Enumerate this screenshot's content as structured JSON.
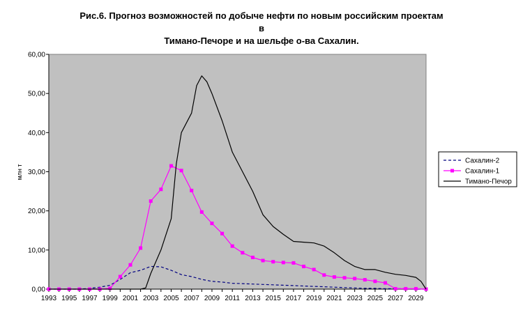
{
  "chart_data": {
    "type": "line",
    "title": [
      "Рис.6. Прогноз возможностей по добыче нефти по новым российским проектам",
      "в",
      "Тимано-Печоре и на шельфе о-ва Сахалин."
    ],
    "ylabel": "млн т",
    "xlabel": "",
    "ylim": [
      0,
      60
    ],
    "yticks": [
      "0,00",
      "10,00",
      "20,00",
      "30,00",
      "40,00",
      "50,00",
      "60,00"
    ],
    "xlim": [
      1993,
      2030
    ],
    "xticks": [
      "1993",
      "1995",
      "1997",
      "1999",
      "2001",
      "2003",
      "2005",
      "2007",
      "2009",
      "2011",
      "2013",
      "2015",
      "2017",
      "2019",
      "2021",
      "2023",
      "2025",
      "2027",
      "2029"
    ],
    "grid": false,
    "plot_background": "#c0c0c0",
    "legend": "right",
    "series": [
      {
        "name": "Сахалин-2",
        "color": "#000080",
        "style": "dashed",
        "x": [
          1993,
          1994,
          1995,
          1996,
          1997,
          1998,
          1999,
          2000,
          2001,
          2002,
          2003,
          2004,
          2005,
          2006,
          2007,
          2008,
          2009,
          2010,
          2011,
          2012,
          2013,
          2014,
          2015,
          2016,
          2017,
          2018,
          2019,
          2020,
          2021,
          2022,
          2023,
          2024,
          2025,
          2026,
          2027,
          2028,
          2029,
          2030
        ],
        "y": [
          0,
          0,
          0,
          0,
          0.2,
          0.5,
          1.0,
          2.5,
          4.2,
          4.8,
          5.8,
          5.7,
          4.8,
          3.7,
          3.2,
          2.5,
          2.0,
          1.8,
          1.5,
          1.4,
          1.3,
          1.2,
          1.1,
          1.0,
          0.9,
          0.8,
          0.7,
          0.6,
          0.5,
          0.4,
          0.3,
          0.2,
          0.2,
          0.1,
          0.1,
          0.1,
          0,
          0
        ]
      },
      {
        "name": "Сахалин-1",
        "color": "#ff00ff",
        "style": "solid-square",
        "x": [
          1993,
          1994,
          1995,
          1996,
          1997,
          1998,
          1999,
          2000,
          2001,
          2002,
          2003,
          2004,
          2005,
          2006,
          2007,
          2008,
          2009,
          2010,
          2011,
          2012,
          2013,
          2014,
          2015,
          2016,
          2017,
          2018,
          2019,
          2020,
          2021,
          2022,
          2023,
          2024,
          2025,
          2026,
          2027,
          2028,
          2029,
          2030
        ],
        "y": [
          0,
          0,
          0,
          0,
          0,
          0,
          0.2,
          3.2,
          6.2,
          10.5,
          22.5,
          25.5,
          31.5,
          30.3,
          25.2,
          19.7,
          16.8,
          14.2,
          11.0,
          9.3,
          8.1,
          7.3,
          7.0,
          6.8,
          6.7,
          5.8,
          5.0,
          3.6,
          3.1,
          2.9,
          2.7,
          2.4,
          2.0,
          1.6,
          0.1,
          0.1,
          0.1,
          0
        ]
      },
      {
        "name": "Тимано-Печор",
        "color": "#000000",
        "style": "solid",
        "x": [
          1993,
          1994,
          1995,
          1996,
          1997,
          1998,
          1999,
          2000,
          2001,
          2002,
          2002.5,
          2003,
          2004,
          2005,
          2005.5,
          2006,
          2007,
          2007.5,
          2008,
          2008.5,
          2009,
          2010,
          2011,
          2012,
          2013,
          2014,
          2015,
          2016,
          2017,
          2018,
          2019,
          2020,
          2021,
          2022,
          2023,
          2024,
          2025,
          2026,
          2027,
          2028,
          2029,
          2029.5,
          2030
        ],
        "y": [
          0,
          0,
          0,
          0,
          0,
          0,
          0,
          0,
          0,
          0,
          0.3,
          4.0,
          10.0,
          18.0,
          32.0,
          40.0,
          45.0,
          52.0,
          54.5,
          53.0,
          50.0,
          43.0,
          35.0,
          30.0,
          25.0,
          19.0,
          16.0,
          14.0,
          12.2,
          12.0,
          11.8,
          11.0,
          9.3,
          7.3,
          5.8,
          5.0,
          5.0,
          4.3,
          3.8,
          3.5,
          3.0,
          2.0,
          0
        ]
      }
    ]
  }
}
